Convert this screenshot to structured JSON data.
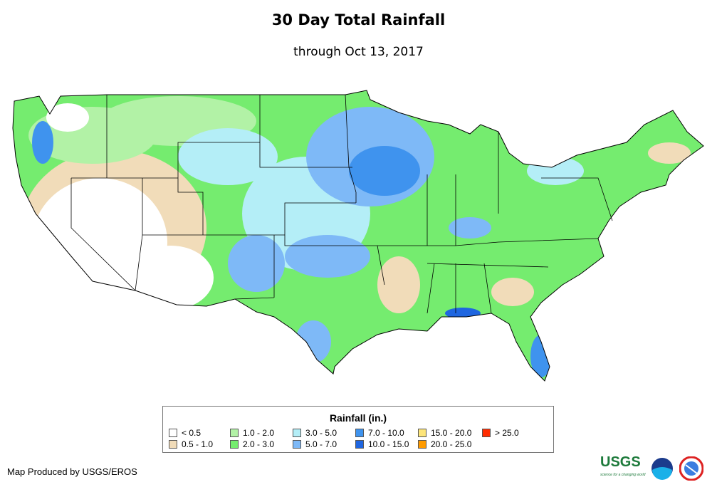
{
  "title": "30 Day Total Rainfall",
  "subtitle": "through Oct 13, 2017",
  "legend": {
    "title": "Rainfall (in.)",
    "items": [
      {
        "label": "< 0.5",
        "color": "#ffffff"
      },
      {
        "label": "0.5 - 1.0",
        "color": "#f1dcb9"
      },
      {
        "label": "1.0 - 2.0",
        "color": "#b2f2a6"
      },
      {
        "label": "2.0 - 3.0",
        "color": "#75ec6f"
      },
      {
        "label": "3.0 - 5.0",
        "color": "#b4eef7"
      },
      {
        "label": "5.0 - 7.0",
        "color": "#7eb9f7"
      },
      {
        "label": "7.0 - 10.0",
        "color": "#3f93ee"
      },
      {
        "label": "10.0 - 15.0",
        "color": "#1f66e0"
      },
      {
        "label": "15.0 - 20.0",
        "color": "#fde57a"
      },
      {
        "label": "20.0 - 25.0",
        "color": "#ff9b00"
      },
      {
        "label": "> 25.0",
        "color": "#ff2c00"
      }
    ]
  },
  "credit": "Map Produced by USGS/EROS",
  "logos": {
    "usgs": "USGS",
    "usgs_tagline": "science for a changing world",
    "noaa": "NOAA",
    "nws": "NATIONAL WEATHER SERVICE"
  }
}
